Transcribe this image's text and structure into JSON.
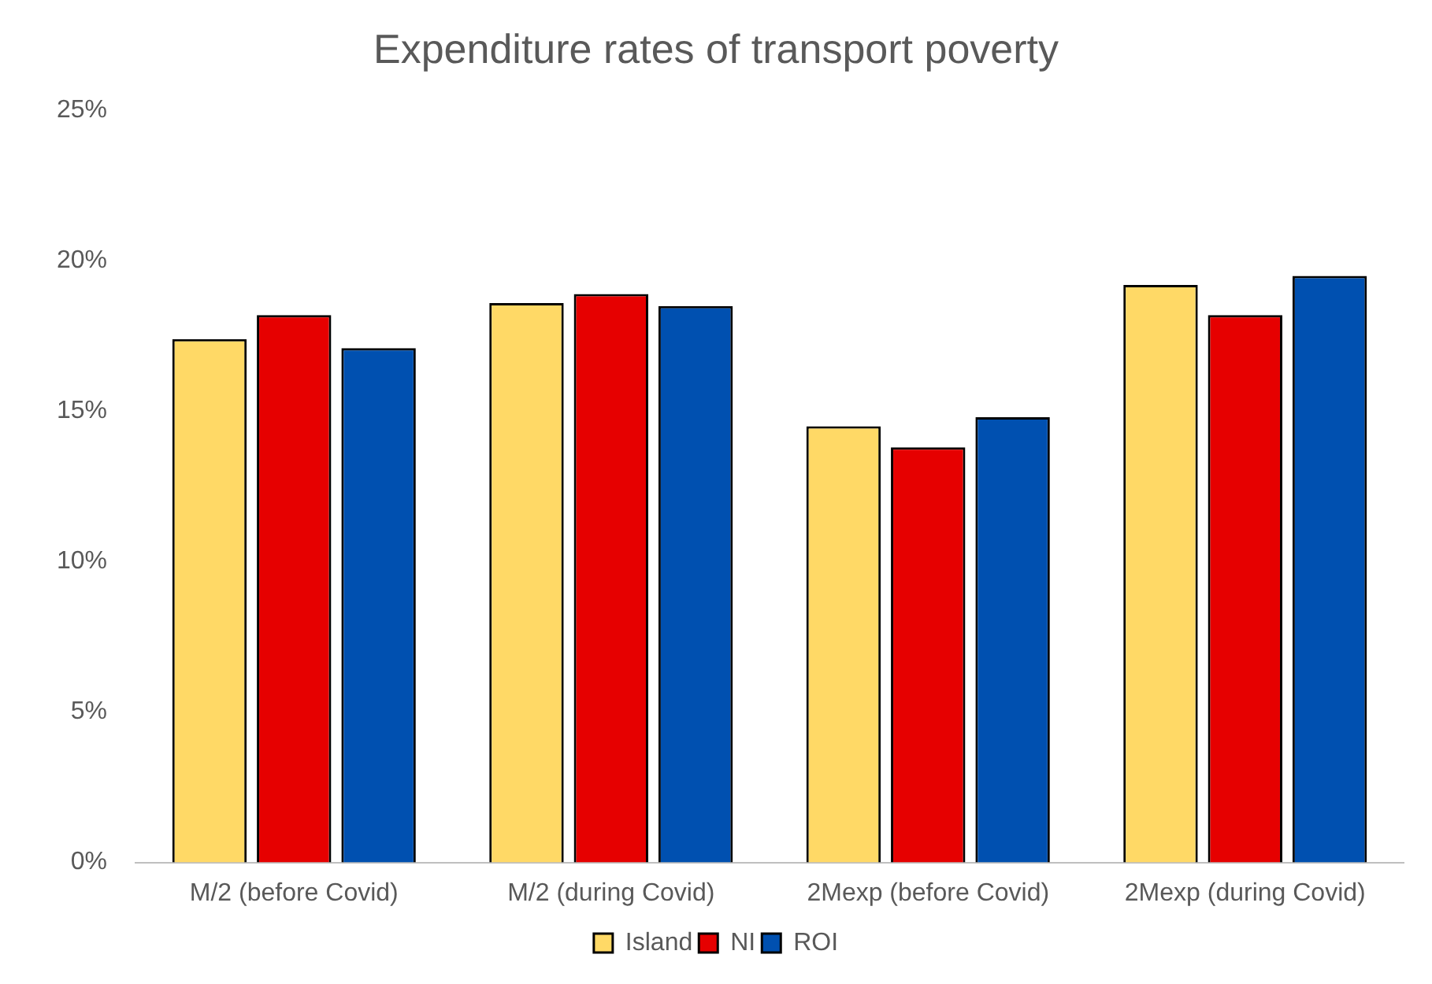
{
  "chart_data": {
    "type": "bar",
    "title": "Expenditure rates of transport poverty",
    "categories": [
      "M/2 (before Covid)",
      "M/2 (during Covid)",
      "2Mexp (before Covid)",
      "2Mexp (during Covid)"
    ],
    "series": [
      {
        "name": "Island",
        "color": "#ffd966",
        "values": [
          17.4,
          18.6,
          14.5,
          19.2
        ]
      },
      {
        "name": "NI",
        "color": "#e60000",
        "values": [
          18.2,
          18.9,
          13.8,
          18.2
        ]
      },
      {
        "name": "ROI",
        "color": "#0050b0",
        "values": [
          17.1,
          18.5,
          14.8,
          19.5
        ]
      }
    ],
    "ylim": [
      0,
      25
    ],
    "yticks": [
      {
        "value": 0,
        "label": "0%"
      },
      {
        "value": 5,
        "label": "5%"
      },
      {
        "value": 10,
        "label": "10%"
      },
      {
        "value": 15,
        "label": "15%"
      },
      {
        "value": 20,
        "label": "20%"
      },
      {
        "value": 25,
        "label": "25%"
      }
    ],
    "grid": false,
    "legend": "bottom"
  }
}
